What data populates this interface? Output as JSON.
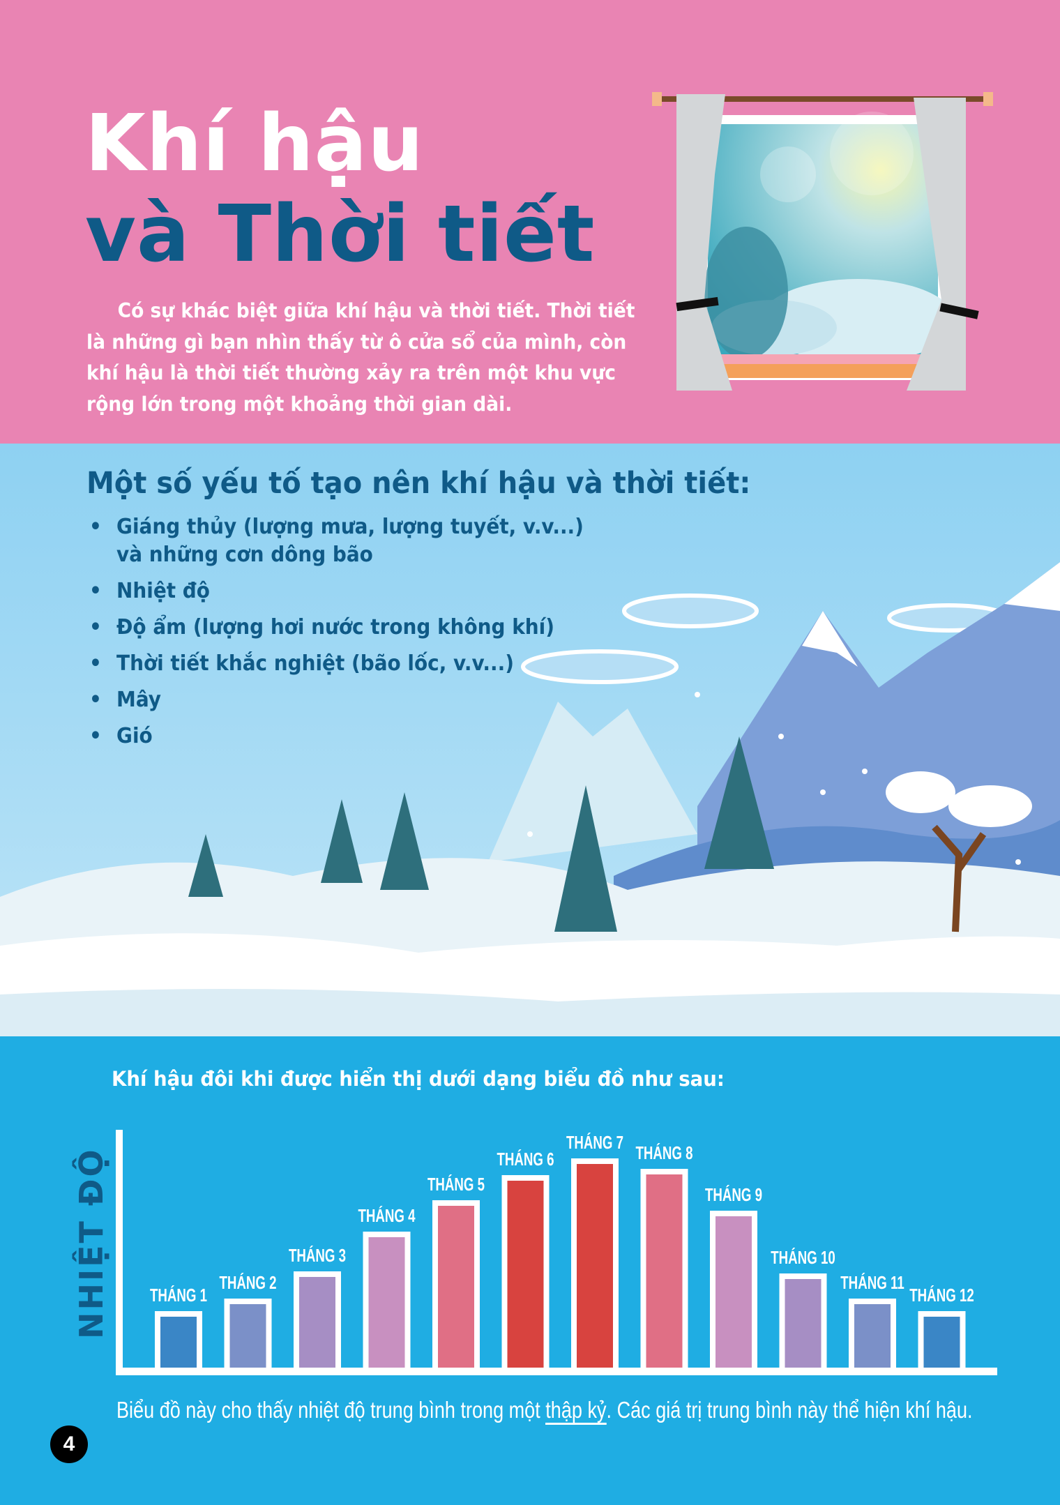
{
  "header": {
    "title_line1": "Khí hậu",
    "title_line2": "và Thời tiết",
    "intro": "Có sự khác biệt giữa khí hậu và thời tiết. Thời tiết là những gì bạn nhìn thấy từ ô cửa sổ của mình, còn khí hậu là thời tiết thường xảy ra trên một khu vực rộng lớn trong một khoảng thời gian dài."
  },
  "factors": {
    "heading": "Một số yếu tố tạo nên khí hậu và thời tiết:",
    "items": [
      {
        "line1": "Giáng thủy (lượng mưa, lượng tuyết, v.v...)",
        "line2": "và những cơn dông bão"
      },
      {
        "line1": "Nhiệt độ"
      },
      {
        "line1": "Độ ẩm (lượng hơi nước trong không khí)"
      },
      {
        "line1": "Thời tiết khắc nghiệt (bão lốc, v.v...)"
      },
      {
        "line1": "Mây"
      },
      {
        "line1": "Gió"
      }
    ]
  },
  "chart_intro": "Khí hậu đôi khi được hiển thị dưới dạng biểu đồ như sau:",
  "chart_data": {
    "type": "bar",
    "ylabel": "NHIỆT ĐỘ",
    "xlabel": "",
    "categories": [
      "THÁNG 1",
      "THÁNG 2",
      "THÁNG 3",
      "THÁNG 4",
      "THÁNG 5",
      "THÁNG 6",
      "THÁNG 7",
      "THÁNG 8",
      "THÁNG 9",
      "THÁNG 10",
      "THÁNG 11",
      "THÁNG 12"
    ],
    "values": [
      27,
      33,
      46,
      65,
      80,
      92,
      100,
      95,
      75,
      45,
      33,
      27
    ],
    "ylim": [
      0,
      100
    ],
    "grid": false,
    "colors": [
      "#3a86c6",
      "#7b90c8",
      "#a68ec4",
      "#c890c0",
      "#e06f85",
      "#d8433f",
      "#d8433f",
      "#e06f85",
      "#c890c0",
      "#a68ec4",
      "#7b90c8",
      "#3a86c6"
    ]
  },
  "footer": {
    "text_before": "Biểu đồ này cho thấy nhiệt độ trung bình trong một ",
    "underlined": "thập kỷ",
    "text_after": ". Các giá trị trung bình này thể hiện khí hậu.",
    "page_number": "4"
  },
  "colors": {
    "pink": "#e984b3",
    "title_blue": "#0f5a87",
    "chart_bg": "#1fade3"
  }
}
